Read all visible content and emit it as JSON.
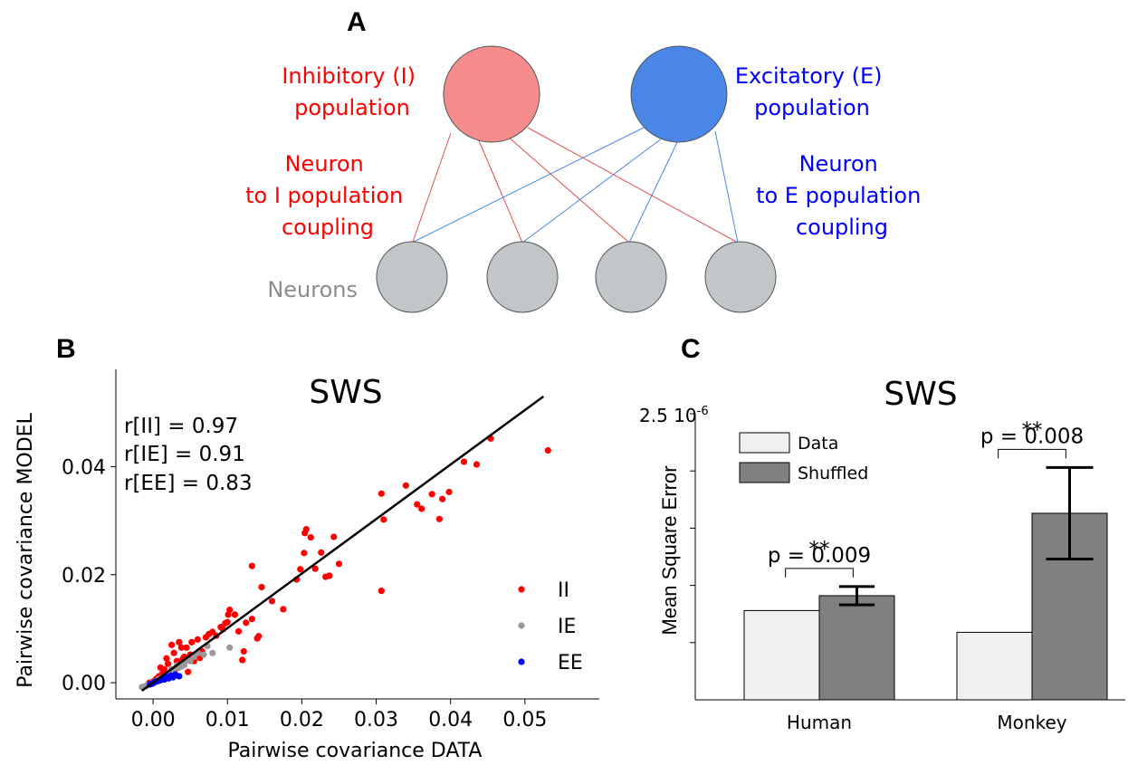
{
  "panelA": {
    "letter": "A",
    "inhibitory_label": [
      "Inhibitory (I)",
      "population"
    ],
    "excitatory_label": [
      "Excitatory (E)",
      "population"
    ],
    "i_coupling_label": [
      "Neuron",
      "to I population",
      "coupling"
    ],
    "e_coupling_label": [
      "Neuron",
      "to E population",
      "coupling"
    ],
    "neurons_label": "Neurons",
    "colors": {
      "inhibitory": "#f48c8c",
      "excitatory": "#4a86e8",
      "neuron": "#c1c6c9",
      "i_line": "#e05050",
      "e_line": "#4a86e8"
    }
  },
  "chart_data": [
    {
      "panel": "B",
      "type": "scatter",
      "title": "SWS",
      "xlabel": "Pairwise covariance DATA",
      "ylabel": "Pairwise covariance MODEL",
      "xlim": [
        -0.005,
        0.06
      ],
      "ylim": [
        -0.003,
        0.058
      ],
      "xticks": [
        "0.00",
        "0.01",
        "0.02",
        "0.03",
        "0.04",
        "0.05"
      ],
      "yticks": [
        "0.00",
        "0.02",
        "0.04"
      ],
      "stats": [
        "r[II] = 0.97",
        "r[IE] = 0.91",
        "r[EE] = 0.83"
      ],
      "fit_line": {
        "x": [
          -0.0015,
          0.0525
        ],
        "y": [
          -0.0015,
          0.053
        ]
      },
      "legend_position": "bottom-right",
      "series": [
        {
          "name": "II",
          "color": "#ff0000",
          "points": [
            [
              0.0531,
              0.043
            ],
            [
              0.0454,
              0.0452
            ],
            [
              0.0435,
              0.0404
            ],
            [
              0.0418,
              0.0409
            ],
            [
              0.0398,
              0.0353
            ],
            [
              0.0389,
              0.034
            ],
            [
              0.0385,
              0.0303
            ],
            [
              0.0375,
              0.0349
            ],
            [
              0.0361,
              0.0322
            ],
            [
              0.0355,
              0.033
            ],
            [
              0.034,
              0.0365
            ],
            [
              0.0307,
              0.035
            ],
            [
              0.031,
              0.0302
            ],
            [
              0.0307,
              0.017
            ],
            [
              0.025,
              0.022
            ],
            [
              0.0243,
              0.027
            ],
            [
              0.0237,
              0.0198
            ],
            [
              0.0232,
              0.0196
            ],
            [
              0.0226,
              0.0241
            ],
            [
              0.0218,
              0.0211
            ],
            [
              0.0212,
              0.0269
            ],
            [
              0.0206,
              0.0284
            ],
            [
              0.0204,
              0.0277
            ],
            [
              0.0203,
              0.024
            ],
            [
              0.0198,
              0.021
            ],
            [
              0.0193,
              0.0191
            ],
            [
              0.0175,
              0.0136
            ],
            [
              0.016,
              0.0151
            ],
            [
              0.0146,
              0.0177
            ],
            [
              0.0142,
              0.0086
            ],
            [
              0.014,
              0.0082
            ],
            [
              0.0133,
              0.0216
            ],
            [
              0.0133,
              0.0118
            ],
            [
              0.0125,
              0.0111
            ],
            [
              0.0122,
              0.0058
            ],
            [
              0.012,
              0.0042
            ],
            [
              0.0115,
              0.0095
            ],
            [
              0.011,
              0.0126
            ],
            [
              0.0103,
              0.0135
            ],
            [
              0.0101,
              0.0126
            ],
            [
              0.01,
              0.0112
            ],
            [
              0.0097,
              0.011
            ],
            [
              0.0094,
              0.0099
            ],
            [
              0.0091,
              0.0103
            ],
            [
              0.0085,
              0.0087
            ],
            [
              0.008,
              0.0094
            ],
            [
              0.0075,
              0.009
            ],
            [
              0.0071,
              0.0084
            ],
            [
              0.0066,
              0.0058
            ],
            [
              0.0063,
              0.0046
            ],
            [
              0.006,
              0.008
            ],
            [
              0.0055,
              0.004
            ],
            [
              0.0052,
              0.0075
            ],
            [
              0.005,
              0.0052
            ],
            [
              0.0047,
              0.002
            ],
            [
              0.0045,
              0.0065
            ],
            [
              0.0042,
              0.0048
            ],
            [
              0.004,
              0.0044
            ],
            [
              0.0038,
              0.0065
            ],
            [
              0.0035,
              0.0075
            ],
            [
              0.0032,
              0.004
            ],
            [
              0.003,
              0.0025
            ],
            [
              0.0028,
              0.0055
            ],
            [
              0.0025,
              0.007
            ],
            [
              0.0023,
              0.0018
            ],
            [
              0.002,
              0.0035
            ],
            [
              0.0018,
              0.0045
            ],
            [
              0.0015,
              0.0025
            ],
            [
              0.0013,
              0.0018
            ],
            [
              0.001,
              0.0028
            ],
            [
              0.0008,
              0.0012
            ],
            [
              0.0005,
              0.0008
            ],
            [
              0.0003,
              0.0005
            ],
            [
              0.0,
              0.0002
            ],
            [
              -0.0005,
              0.0
            ],
            [
              -0.0008,
              -0.0005
            ]
          ]
        },
        {
          "name": "IE",
          "color": "#999999",
          "points": [
            [
              0.0103,
              0.0065
            ],
            [
              0.008,
              0.0055
            ],
            [
              0.0073,
              0.0068
            ],
            [
              0.0068,
              0.0052
            ],
            [
              0.006,
              0.0055
            ],
            [
              0.0055,
              0.0048
            ],
            [
              0.005,
              0.004
            ],
            [
              0.0046,
              0.0042
            ],
            [
              0.0042,
              0.0033
            ],
            [
              0.0038,
              0.003
            ],
            [
              0.0035,
              0.0028
            ],
            [
              0.0032,
              0.0032
            ],
            [
              0.0028,
              0.0022
            ],
            [
              0.0025,
              0.0025
            ],
            [
              0.0022,
              0.0018
            ],
            [
              0.0019,
              0.0015
            ],
            [
              0.0016,
              0.0012
            ],
            [
              0.0013,
              0.001
            ],
            [
              0.001,
              0.0008
            ],
            [
              0.0007,
              0.0006
            ],
            [
              0.0004,
              0.0003
            ],
            [
              0.0001,
              0.0001
            ],
            [
              -0.0002,
              -0.0001
            ],
            [
              -0.0006,
              -0.0004
            ],
            [
              -0.001,
              -0.0006
            ],
            [
              -0.0015,
              -0.0008
            ]
          ]
        },
        {
          "name": "EE",
          "color": "#0000ff",
          "points": [
            [
              0.0035,
              0.0012
            ],
            [
              0.003,
              0.0015
            ],
            [
              0.0027,
              0.001
            ],
            [
              0.0024,
              0.0013
            ],
            [
              0.0021,
              0.0008
            ],
            [
              0.0018,
              0.001
            ],
            [
              0.0015,
              0.0006
            ],
            [
              0.0012,
              0.0007
            ],
            [
              0.0009,
              0.0004
            ],
            [
              0.0006,
              0.0003
            ],
            [
              0.0004,
              0.0002
            ],
            [
              0.0002,
              0.0001
            ],
            [
              0.0,
              -0.0001
            ],
            [
              -0.0002,
              -0.0002
            ],
            [
              -0.0004,
              -0.0003
            ]
          ]
        }
      ]
    },
    {
      "panel": "C",
      "type": "bar",
      "title": "SWS",
      "ylabel": "Mean Square Error",
      "y_scale_label": "2.5 10",
      "y_scale_exponent": "-6",
      "ylim": [
        0,
        2.5
      ],
      "yticks_values": [
        0.5,
        1.0,
        1.5,
        2.0
      ],
      "categories": [
        "Human",
        "Monkey"
      ],
      "legend_position": "top-left",
      "series": [
        {
          "name": "Data",
          "color": "#f0f0f0",
          "values": [
            0.78,
            0.59
          ],
          "errors": [
            0,
            0
          ]
        },
        {
          "name": "Shuffled",
          "color": "#808080",
          "values": [
            0.91,
            1.63
          ],
          "errors": [
            0.08,
            0.4
          ]
        }
      ],
      "annotations": [
        {
          "category": "Human",
          "stars": "**",
          "text": "p = 0.009"
        },
        {
          "category": "Monkey",
          "stars": "**",
          "text": "p = 0.008"
        }
      ]
    }
  ]
}
